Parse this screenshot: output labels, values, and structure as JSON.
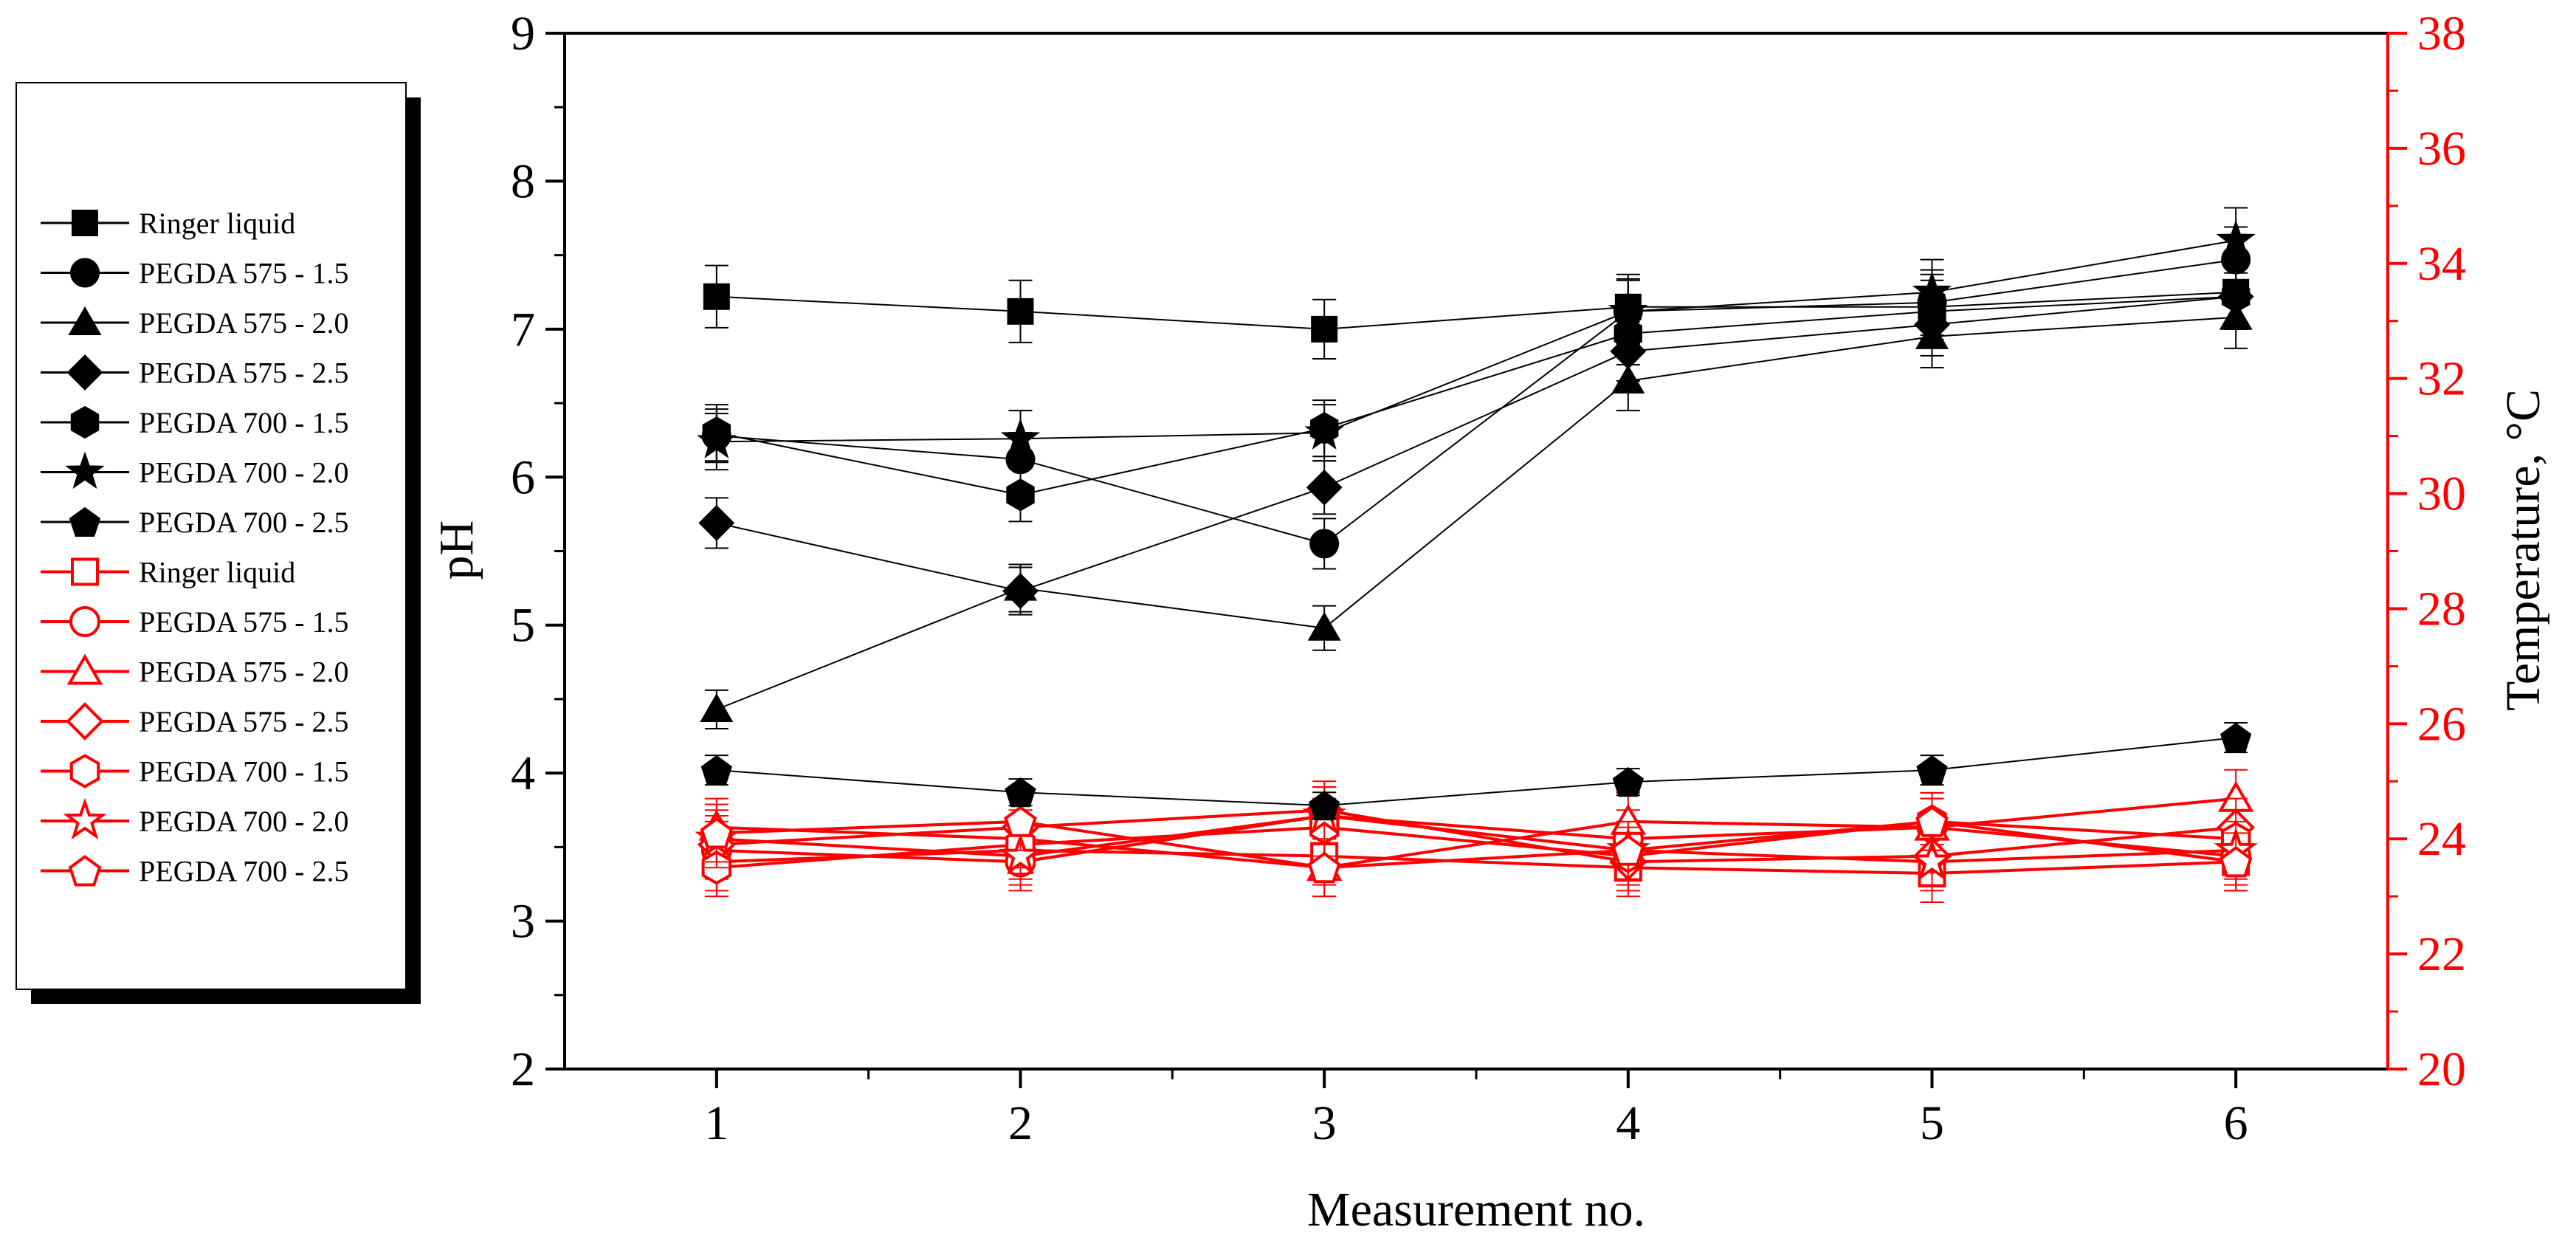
{
  "chart_data": {
    "type": "line",
    "xlabel": "Measurement no.",
    "ylabel": "pH",
    "y2label": "Temperature, °C",
    "x": [
      1,
      2,
      3,
      4,
      5,
      6
    ],
    "x_ticks": [
      "1",
      "2",
      "3",
      "4",
      "5",
      "6"
    ],
    "xlim": [
      0.5,
      6.5
    ],
    "ylim": [
      2,
      9
    ],
    "y_ticks": [
      "2",
      "3",
      "4",
      "5",
      "6",
      "7",
      "8",
      "9"
    ],
    "y2lim": [
      20,
      38
    ],
    "y2_ticks": [
      "20",
      "22",
      "24",
      "26",
      "28",
      "30",
      "32",
      "34",
      "36",
      "38"
    ],
    "left_axis_color": "#000000",
    "right_axis_color": "#ff0000",
    "legend_position": "left, outside plot area",
    "series_ph": [
      {
        "name": "Ringer liquid",
        "marker": "square",
        "values": [
          7.22,
          7.12,
          7.0,
          7.15,
          7.15,
          7.25
        ],
        "error": [
          0.21,
          0.21,
          0.2,
          0.22,
          0.22,
          0.22
        ]
      },
      {
        "name": "PEGDA 575 - 1.5",
        "marker": "circle",
        "values": [
          6.28,
          6.12,
          5.55,
          7.12,
          7.18,
          7.47
        ],
        "error": [
          0.18,
          0.18,
          0.17,
          0.22,
          0.22,
          0.22
        ]
      },
      {
        "name": "PEGDA 575 - 2.0",
        "marker": "triangle",
        "values": [
          4.43,
          5.25,
          4.98,
          6.65,
          6.95,
          7.08
        ],
        "error": [
          0.13,
          0.16,
          0.15,
          0.2,
          0.21,
          0.21
        ]
      },
      {
        "name": "PEGDA 575 - 2.5",
        "marker": "diamond",
        "values": [
          5.69,
          5.23,
          5.93,
          6.85,
          7.03,
          7.22
        ],
        "error": [
          0.17,
          0.16,
          0.18,
          0.2,
          0.21,
          0.22
        ]
      },
      {
        "name": "PEGDA 700 - 1.5",
        "marker": "hexagon",
        "values": [
          6.3,
          5.88,
          6.33,
          6.97,
          7.12,
          7.22
        ],
        "error": [
          0.19,
          0.18,
          0.19,
          0.21,
          0.21,
          0.22
        ]
      },
      {
        "name": "PEGDA 700 - 2.0",
        "marker": "star",
        "values": [
          6.24,
          6.26,
          6.3,
          7.12,
          7.25,
          7.6
        ],
        "error": [
          0.19,
          0.19,
          0.19,
          0.21,
          0.22,
          0.22
        ]
      },
      {
        "name": "PEGDA 700 - 2.5",
        "marker": "pentagon",
        "values": [
          4.02,
          3.87,
          3.78,
          3.94,
          4.02,
          4.24
        ],
        "error": [
          0.1,
          0.09,
          0.09,
          0.09,
          0.1,
          0.1
        ]
      }
    ],
    "series_temperature": [
      {
        "name": "Ringer liquid",
        "marker": "square",
        "values": [
          23.6,
          23.8,
          23.7,
          23.5,
          23.4,
          23.6
        ],
        "error": [
          0.5,
          0.5,
          0.5,
          0.5,
          0.5,
          0.5
        ]
      },
      {
        "name": "PEGDA 575 - 1.5",
        "marker": "circle",
        "values": [
          23.8,
          23.6,
          24.4,
          24.0,
          24.2,
          23.7
        ],
        "error": [
          0.5,
          0.5,
          0.5,
          0.5,
          0.5,
          0.5
        ]
      },
      {
        "name": "PEGDA 575 - 2.0",
        "marker": "triangle",
        "values": [
          24.2,
          24.0,
          23.5,
          24.3,
          24.2,
          24.7
        ],
        "error": [
          0.5,
          0.5,
          0.5,
          0.5,
          0.5,
          0.5
        ]
      },
      {
        "name": "PEGDA 575 - 2.5",
        "marker": "diamond",
        "values": [
          23.9,
          24.2,
          24.5,
          23.6,
          23.7,
          24.2
        ],
        "error": [
          0.5,
          0.5,
          0.5,
          0.5,
          0.5,
          0.5
        ]
      },
      {
        "name": "PEGDA 700 - 1.5",
        "marker": "hexagon",
        "values": [
          23.5,
          23.9,
          24.2,
          23.7,
          24.3,
          24.0
        ],
        "error": [
          0.5,
          0.5,
          0.5,
          0.5,
          0.5,
          0.5
        ]
      },
      {
        "name": "PEGDA 700 - 2.0",
        "marker": "star",
        "values": [
          24.0,
          23.7,
          24.4,
          23.8,
          23.6,
          23.8
        ],
        "error": [
          0.5,
          0.5,
          0.5,
          0.5,
          0.5,
          0.5
        ]
      },
      {
        "name": "PEGDA 700 - 2.5",
        "marker": "pentagon",
        "values": [
          24.1,
          24.3,
          23.5,
          23.8,
          24.3,
          23.6
        ],
        "error": [
          0.5,
          0.5,
          0.5,
          0.5,
          0.5,
          0.5
        ]
      }
    ]
  }
}
